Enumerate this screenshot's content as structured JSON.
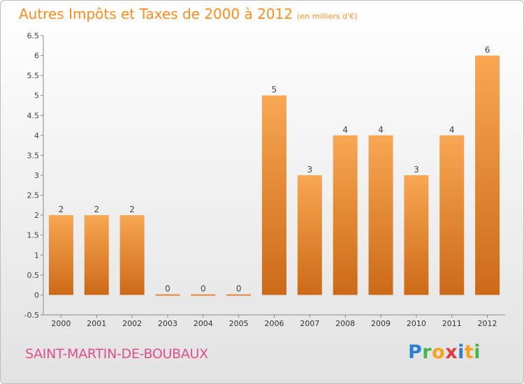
{
  "header": {
    "title": "Autres Impôts et Taxes de 2000 à 2012",
    "subtitle": "(en milliers d'€)"
  },
  "footer": {
    "commune": "SAINT-MARTIN-DE-BOUBAUX",
    "logo": "Proxiti"
  },
  "colors": {
    "bar_light": "#f8a752",
    "bar_dark": "#cc6a17",
    "title": "#ff8c1a",
    "commune": "#e04f8c"
  },
  "chart_data": {
    "type": "bar",
    "categories": [
      "2000",
      "2001",
      "2002",
      "2003",
      "2004",
      "2005",
      "2006",
      "2007",
      "2008",
      "2009",
      "2010",
      "2011",
      "2012"
    ],
    "values": [
      2,
      2,
      2,
      0,
      0,
      0,
      5,
      3,
      4,
      4,
      3,
      4,
      6
    ],
    "data_labels": [
      "2",
      "2",
      "2",
      "0",
      "0",
      "0",
      "5",
      "3",
      "4",
      "4",
      "3",
      "4",
      "6"
    ],
    "y_ticks": [
      "-0.5",
      "0",
      "0.5",
      "1",
      "1.5",
      "2",
      "2.5",
      "3",
      "3.5",
      "4",
      "4.5",
      "5",
      "5.5",
      "6",
      "6.5"
    ],
    "ylim": [
      -0.5,
      6.5
    ],
    "title": "Autres Impôts et Taxes de 2000 à 2012",
    "xlabel": "",
    "ylabel": "",
    "grid": false,
    "legend": "none"
  }
}
